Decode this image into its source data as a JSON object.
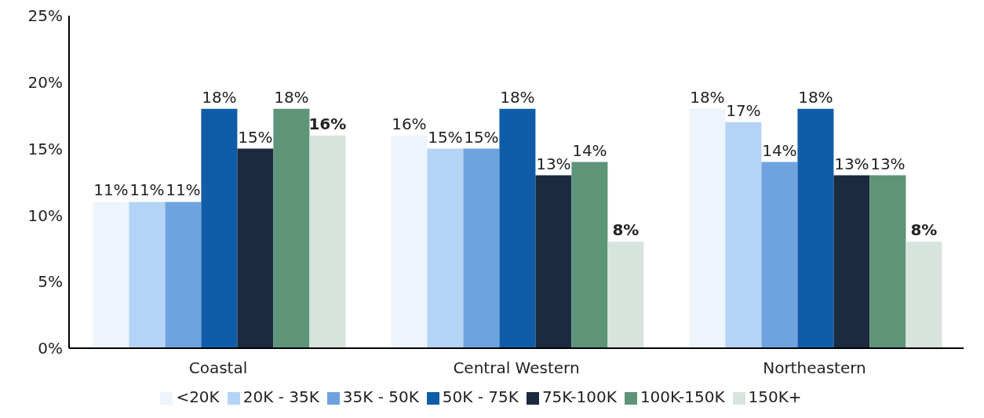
{
  "chart_data": {
    "type": "bar",
    "categories": [
      "Coastal",
      "Central Western",
      "Northeastern"
    ],
    "series": [
      {
        "name": "<20K",
        "color": "#eef4fb",
        "values": [
          11,
          16,
          18
        ],
        "value_labels": [
          "11%",
          "16%",
          "18%"
        ]
      },
      {
        "name": "20K - 35K",
        "color": "#b3d4f5",
        "values": [
          11,
          15,
          17
        ],
        "value_labels": [
          "11%",
          "15%",
          "17%"
        ]
      },
      {
        "name": "35K - 50K",
        "color": "#6fa3e0",
        "values": [
          11,
          15,
          14
        ],
        "value_labels": [
          "11%",
          "15%",
          "14%"
        ]
      },
      {
        "name": "50K - 75K",
        "color": "#0f5da8",
        "values": [
          18,
          18,
          18
        ],
        "value_labels": [
          "18%",
          "18%",
          "18%"
        ]
      },
      {
        "name": "75K-100K",
        "color": "#1a2a40",
        "values": [
          15,
          13,
          13
        ],
        "value_labels": [
          "15%",
          "13%",
          "13%"
        ]
      },
      {
        "name": "100K-150K",
        "color": "#5e9478",
        "values": [
          18,
          14,
          13
        ],
        "value_labels": [
          "18%",
          "14%",
          "13%"
        ]
      },
      {
        "name": "150K+",
        "color": "#d7e4de",
        "values": [
          16,
          8,
          8
        ],
        "value_labels": [
          "16%",
          "8%",
          "8%"
        ]
      }
    ],
    "ylim": [
      0,
      25
    ],
    "yticks": [
      {
        "value": 0,
        "label": "0%"
      },
      {
        "value": 5,
        "label": "5%"
      },
      {
        "value": 10,
        "label": "10%"
      },
      {
        "value": 15,
        "label": "15%"
      },
      {
        "value": 20,
        "label": "20%"
      },
      {
        "value": 25,
        "label": "25%"
      }
    ],
    "grid": false,
    "legend": "bottom"
  }
}
